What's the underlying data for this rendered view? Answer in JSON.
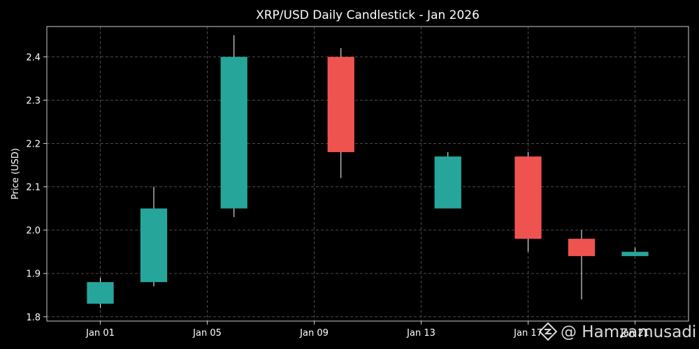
{
  "chart_data": {
    "type": "candlestick",
    "title": "XRP/USD Daily Candlestick - Jan 2026",
    "xlabel": "",
    "ylabel": "Price (USD)",
    "ylim": [
      1.79,
      2.47
    ],
    "xlim": [
      "2025-12-30",
      "2026-01-23"
    ],
    "yticks": [
      1.8,
      1.9,
      2.0,
      2.1,
      2.2,
      2.3,
      2.4
    ],
    "xticks": [
      {
        "date": "2026-01-01",
        "label": "Jan 01"
      },
      {
        "date": "2026-01-05",
        "label": "Jan 05"
      },
      {
        "date": "2026-01-09",
        "label": "Jan 09"
      },
      {
        "date": "2026-01-13",
        "label": "Jan 13"
      },
      {
        "date": "2026-01-17",
        "label": "Jan 17"
      },
      {
        "date": "2026-01-21",
        "label": "Jan 21"
      }
    ],
    "grid": true,
    "up_color": "#26a69a",
    "down_color": "#ef5350",
    "wick_color": "#ffffff",
    "candles": [
      {
        "date": "2026-01-01",
        "open": 1.83,
        "high": 1.89,
        "low": 1.82,
        "close": 1.88
      },
      {
        "date": "2026-01-03",
        "open": 1.88,
        "high": 2.1,
        "low": 1.87,
        "close": 2.05
      },
      {
        "date": "2026-01-06",
        "open": 2.05,
        "high": 2.45,
        "low": 2.03,
        "close": 2.4
      },
      {
        "date": "2026-01-10",
        "open": 2.4,
        "high": 2.42,
        "low": 2.12,
        "close": 2.18
      },
      {
        "date": "2026-01-14",
        "open": 2.05,
        "high": 2.18,
        "low": 2.05,
        "close": 2.17
      },
      {
        "date": "2026-01-17",
        "open": 2.17,
        "high": 2.18,
        "low": 1.95,
        "close": 1.98
      },
      {
        "date": "2026-01-19",
        "open": 1.98,
        "high": 2.0,
        "low": 1.84,
        "close": 1.94
      },
      {
        "date": "2026-01-21",
        "open": 1.94,
        "high": 1.96,
        "low": 1.94,
        "close": 1.95
      }
    ]
  },
  "watermark": {
    "text": "@ Hamzamusadi",
    "icon": "diamond-logo-icon"
  }
}
